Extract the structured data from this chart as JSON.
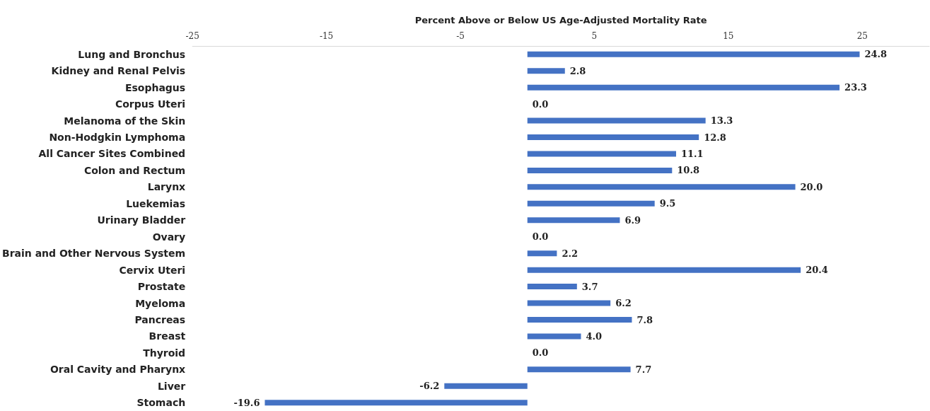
{
  "chart_data": {
    "type": "bar",
    "orientation": "horizontal",
    "xlabel": "Percent Above or Below US Age-Adjusted Mortality Rate",
    "categories": [
      "Lung and Bronchus",
      "Kidney and Renal Pelvis",
      "Esophagus",
      "Corpus Uteri",
      "Melanoma of the Skin",
      "Non-Hodgkin Lymphoma",
      "All Cancer Sites Combined",
      "Colon and Rectum",
      "Larynx",
      "Luekemias",
      "Urinary Bladder",
      "Ovary",
      "Brain and Other Nervous System",
      "Cervix Uteri",
      "Prostate",
      "Myeloma",
      "Pancreas",
      "Breast",
      "Thyroid",
      "Oral Cavity and Pharynx",
      "Liver",
      "Stomach"
    ],
    "values": [
      24.8,
      2.8,
      23.3,
      0.0,
      13.3,
      12.8,
      11.1,
      10.8,
      20.0,
      9.5,
      6.9,
      0.0,
      2.2,
      20.4,
      3.7,
      6.2,
      7.8,
      4.0,
      0.0,
      7.7,
      -6.2,
      -19.6
    ],
    "value_labels": [
      "24.8",
      "2.8",
      "23.3",
      "0.0",
      "13.3",
      "12.8",
      "11.1",
      "10.8",
      "20.0",
      "9.5",
      "6.9",
      "0.0",
      "2.2",
      "20.4",
      "3.7",
      "6.2",
      "7.8",
      "4.0",
      "0.0",
      "7.7",
      "-6.2",
      "-19.6"
    ],
    "color": "#4472c4",
    "xlim": [
      -25,
      30
    ],
    "xticks": [
      -25,
      -15,
      -5,
      5,
      15,
      25
    ],
    "grid": false
  }
}
